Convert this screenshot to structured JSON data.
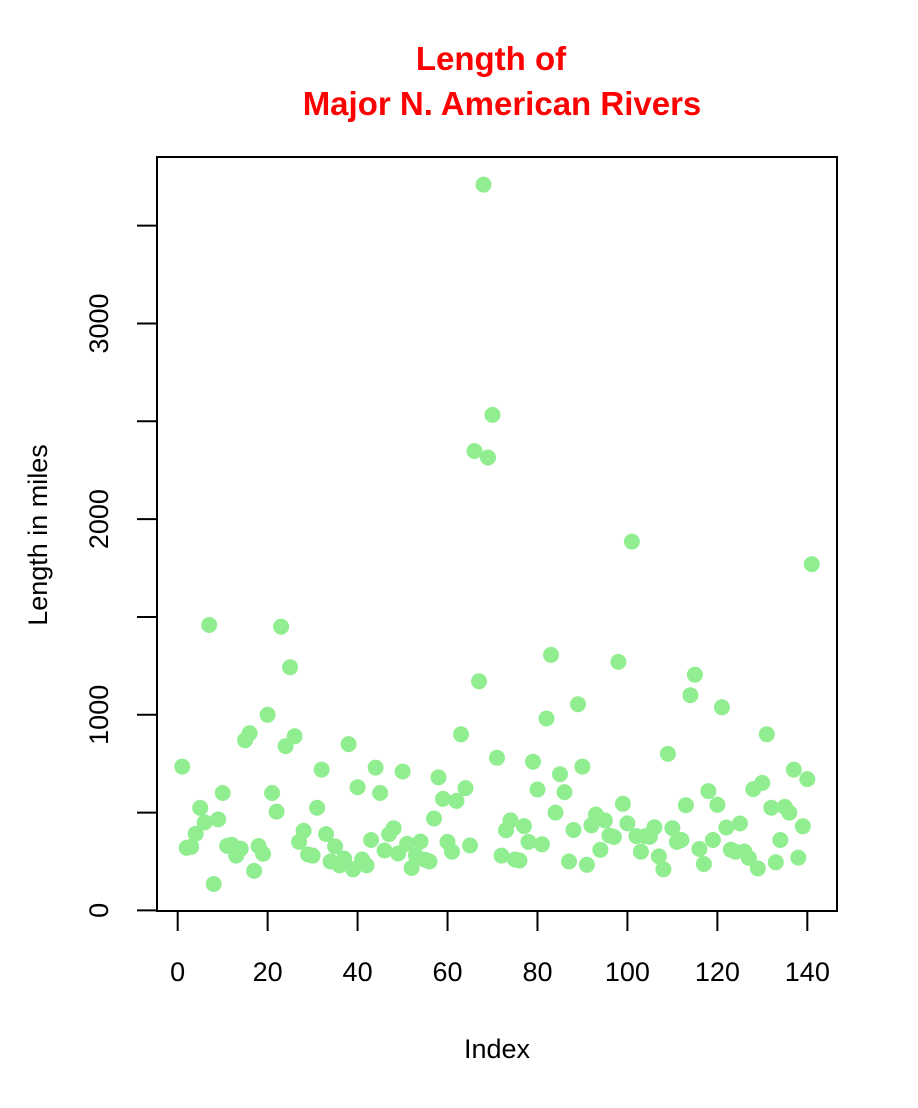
{
  "chart_data": {
    "type": "scatter",
    "title_lines": [
      "Length of",
      "Major N. American Rivers"
    ],
    "xlabel": "Index",
    "ylabel": "Length in miles",
    "x_ticks": [
      "0",
      "20",
      "40",
      "60",
      "80",
      "100",
      "120",
      "140"
    ],
    "y_ticks": [
      "0",
      "",
      "1000",
      "",
      "2000",
      "",
      "3000",
      ""
    ],
    "xlim": [
      -4.6,
      146.6
    ],
    "ylim": [
      -3,
      3851
    ],
    "grid": false,
    "legend": "none",
    "colors": {
      "title": "#ff0000",
      "points": "#90ee90",
      "axis": "#000000"
    },
    "x": [
      1,
      2,
      3,
      4,
      5,
      6,
      7,
      8,
      9,
      10,
      11,
      12,
      13,
      14,
      15,
      16,
      17,
      18,
      19,
      20,
      21,
      22,
      23,
      24,
      25,
      26,
      27,
      28,
      29,
      30,
      31,
      32,
      33,
      34,
      35,
      36,
      37,
      38,
      39,
      40,
      41,
      42,
      43,
      44,
      45,
      46,
      47,
      48,
      49,
      50,
      51,
      52,
      53,
      54,
      55,
      56,
      57,
      58,
      59,
      60,
      61,
      62,
      63,
      64,
      65,
      66,
      67,
      68,
      69,
      70,
      71,
      72,
      73,
      74,
      75,
      76,
      77,
      78,
      79,
      80,
      81,
      82,
      83,
      84,
      85,
      86,
      87,
      88,
      89,
      90,
      91,
      92,
      93,
      94,
      95,
      96,
      97,
      98,
      99,
      100,
      101,
      102,
      103,
      104,
      105,
      106,
      107,
      108,
      109,
      110,
      111,
      112,
      113,
      114,
      115,
      116,
      117,
      118,
      119,
      120,
      121,
      122,
      123,
      124,
      125,
      126,
      127,
      128,
      129,
      130,
      131,
      132,
      133,
      134,
      135,
      136,
      137,
      138,
      139,
      140,
      141
    ],
    "y": [
      735,
      320,
      325,
      392,
      524,
      450,
      1459,
      135,
      465,
      600,
      330,
      336,
      280,
      315,
      870,
      906,
      202,
      329,
      290,
      1000,
      600,
      505,
      1450,
      840,
      1243,
      890,
      350,
      407,
      286,
      280,
      525,
      720,
      390,
      250,
      327,
      230,
      265,
      850,
      210,
      630,
      260,
      230,
      360,
      730,
      600,
      306,
      390,
      420,
      291,
      710,
      340,
      217,
      280,
      352,
      259,
      250,
      470,
      680,
      570,
      350,
      300,
      560,
      900,
      625,
      332,
      2348,
      1171,
      3710,
      2315,
      2533,
      780,
      280,
      410,
      460,
      260,
      255,
      431,
      350,
      760,
      618,
      338,
      981,
      1306,
      500,
      696,
      605,
      250,
      411,
      1054,
      735,
      233,
      435,
      490,
      310,
      460,
      383,
      375,
      1270,
      545,
      445,
      1885,
      380,
      300,
      380,
      377,
      425,
      276,
      210,
      800,
      420,
      350,
      360,
      538,
      1100,
      1205,
      314,
      237,
      610,
      360,
      540,
      1038,
      424,
      310,
      300,
      444,
      301,
      268,
      620,
      215,
      652,
      900,
      525,
      246,
      360,
      529,
      500,
      720,
      270,
      430,
      671,
      1770
    ]
  }
}
